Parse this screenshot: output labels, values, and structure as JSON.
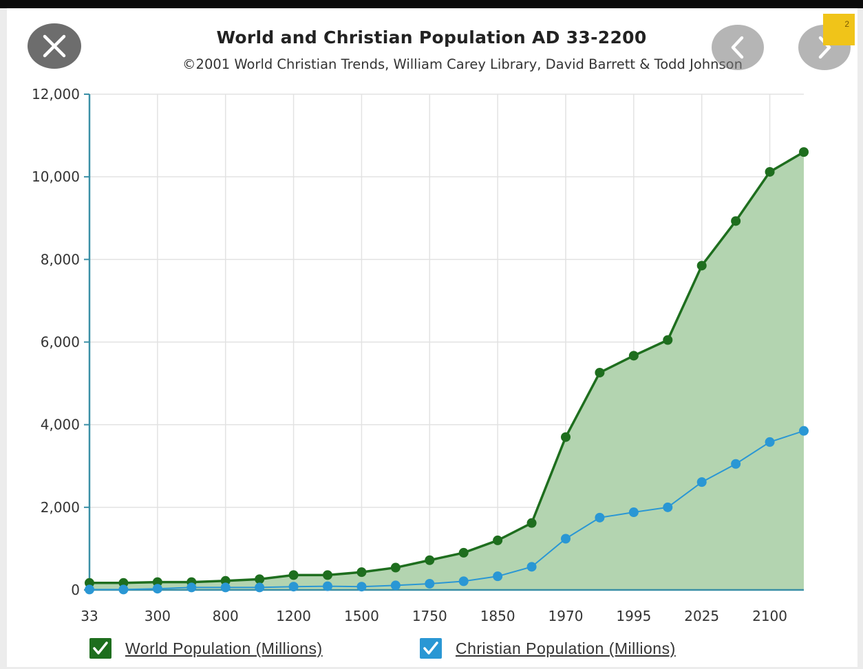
{
  "window": {
    "close_icon": "close-icon",
    "prev_icon": "chevron-left-icon",
    "next_icon": "chevron-right-icon",
    "badge": "2"
  },
  "chart_data": {
    "type": "area",
    "title": "World and Christian Population AD 33-2200",
    "subtitle": "©2001 World Christian Trends, William Carey Library, David Barrett & Todd Johnson",
    "xlabel": "",
    "ylabel": "",
    "x": [
      "33",
      "",
      "300",
      "",
      "800",
      "",
      "1200",
      "",
      "1500",
      "",
      "1750",
      "",
      "1850",
      "",
      "1970",
      "",
      "1995",
      "",
      "2025",
      "",
      "2100",
      ""
    ],
    "x_tick_labels": [
      "33",
      "300",
      "800",
      "1200",
      "1500",
      "1750",
      "1850",
      "1970",
      "1995",
      "2025",
      "2100"
    ],
    "ylim": [
      0,
      12000
    ],
    "y_ticks": [
      0,
      2000,
      4000,
      6000,
      8000,
      10000,
      12000
    ],
    "y_tick_labels": [
      "0",
      "2,000",
      "4,000",
      "6,000",
      "8,000",
      "10,000",
      "12,000"
    ],
    "grid": true,
    "legend_position": "bottom",
    "series": [
      {
        "name": "World Population (Millions)",
        "color": "#1e6e1e",
        "fill": "#b3d4b0",
        "values": [
          170,
          170,
          190,
          190,
          220,
          260,
          360,
          360,
          430,
          540,
          720,
          900,
          1200,
          1620,
          3700,
          5260,
          5670,
          6050,
          7850,
          8930,
          10120,
          10600
        ]
      },
      {
        "name": "Christian Population (Millions)",
        "color": "#2a97d4",
        "values": [
          10,
          10,
          30,
          60,
          60,
          60,
          80,
          90,
          80,
          110,
          150,
          210,
          330,
          560,
          1240,
          1750,
          1880,
          2000,
          2610,
          3050,
          3580,
          3850
        ]
      }
    ]
  }
}
